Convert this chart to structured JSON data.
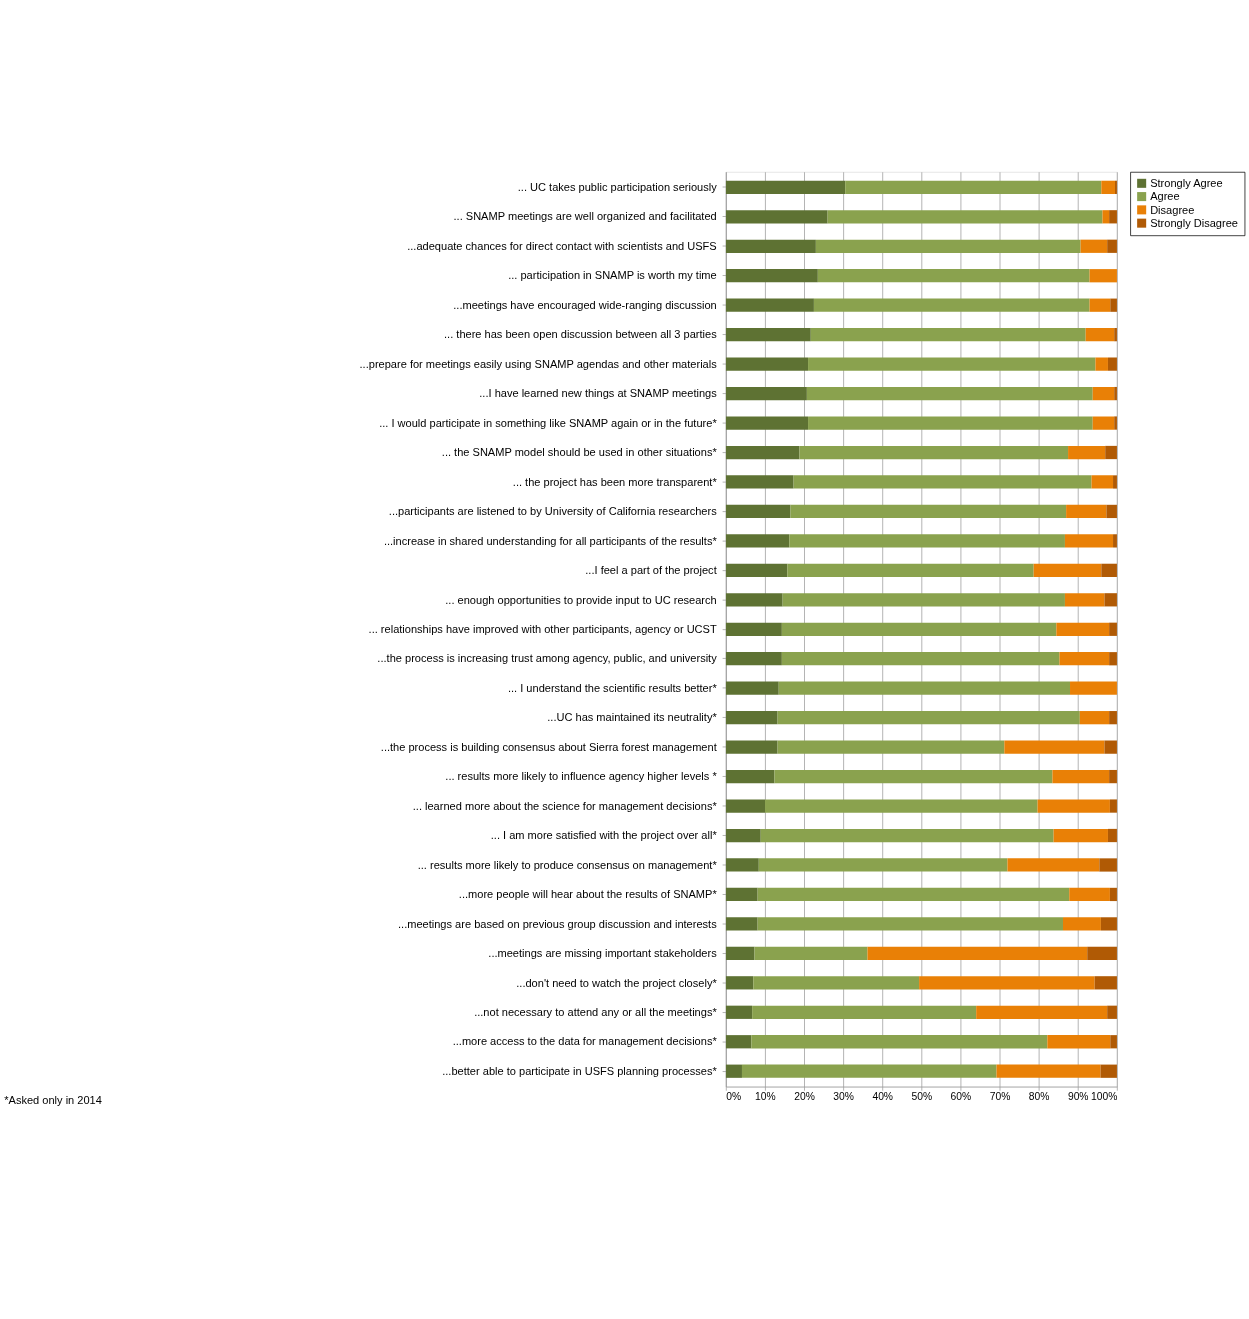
{
  "chart_data": {
    "type": "bar",
    "orientation": "horizontal",
    "stacked": true,
    "categories": [
      "... UC takes public participation seriously",
      "... SNAMP meetings are well organized and facilitated",
      "...adequate chances for direct contact with  scientists and USFS",
      "... participation in SNAMP is worth my time",
      "...meetings have encouraged wide-ranging discussion",
      "... there has been open discussion between all 3 parties",
      "...prepare for meetings easily using SNAMP agendas and other materials",
      "...I have learned new things at SNAMP meetings",
      "... I would participate in something like SNAMP again or in the future*",
      "... the SNAMP model should be used in other situations*",
      "... the project has been more transparent*",
      "...participants are listened to by University of California researchers",
      "...increase in shared understanding for all participants of the results*",
      "...I feel a part of the project",
      "... enough opportunities to provide input to UC research",
      "... relationships have improved with other participants, agency or UCST",
      "...the process is increasing trust among agency, public, and university",
      "... I understand the scientific results better*",
      "...UC has maintained its neutrality*",
      "...the process is building consensus about Sierra forest management",
      "... results  more likely to influence agency higher levels *",
      "... learned more about the science for management decisions*",
      "... I am more satisfied with the project over all*",
      "... results more likely to produce consensus on management*",
      "...more people will hear about the results of SNAMP*",
      "...meetings are  based on previous group discussion and interests",
      "...meetings are missing important stakeholders",
      "...don't need to watch the project closely*",
      "...not necessary to attend any or all the meetings*",
      "...more access to the data for management decisions*",
      "...better able to participate in USFS planning processes*"
    ],
    "series": [
      {
        "name": "Strongly Agree",
        "color": "#5e7233",
        "values": [
          30.5,
          26,
          23,
          23.5,
          22.5,
          21.7,
          21,
          20.7,
          21,
          18.8,
          17.3,
          16.5,
          16.2,
          15.7,
          14.5,
          14.3,
          14.3,
          13.5,
          13.2,
          13.2,
          12.4,
          10,
          8.9,
          8.4,
          8.1,
          8.1,
          7.3,
          7,
          6.7,
          6.5,
          4.1
        ]
      },
      {
        "name": "Agree",
        "color": "#8aa24e",
        "values": [
          65.5,
          70.3,
          67.7,
          69.5,
          70.5,
          70.3,
          73.5,
          73.1,
          72.8,
          68.7,
          76.2,
          70.5,
          70.5,
          63,
          72.2,
          70.2,
          71,
          74.5,
          77.3,
          58,
          71.1,
          69.7,
          74.9,
          63.6,
          79.7,
          78.1,
          28.9,
          42.4,
          57.3,
          75.7,
          65.1
        ]
      },
      {
        "name": "Disagree",
        "color": "#e98006",
        "values": [
          3.5,
          1.7,
          6.8,
          7,
          5.3,
          7.3,
          3.2,
          5.5,
          5.5,
          9.5,
          5.5,
          10.3,
          12.3,
          17.3,
          10.1,
          13.5,
          12.7,
          12,
          7.5,
          25.6,
          14.5,
          18.5,
          13.9,
          23.5,
          10.4,
          9.7,
          56.2,
          44.9,
          33.5,
          16.1,
          26.6
        ]
      },
      {
        "name": "Strongly Disagree",
        "color": "#b05a05",
        "values": [
          0.5,
          2,
          2.5,
          0,
          1.7,
          0.7,
          2.3,
          0.7,
          0.7,
          3,
          1,
          2.7,
          1,
          4,
          3.2,
          2,
          2,
          0,
          2,
          3.2,
          2,
          1.8,
          2.3,
          4.5,
          1.8,
          4.1,
          7.6,
          5.7,
          2.5,
          1.7,
          4.2
        ]
      }
    ],
    "xlim": [
      0,
      100
    ],
    "xticks": [
      {
        "value": 0,
        "label": "0%"
      },
      {
        "value": 10,
        "label": "10%"
      },
      {
        "value": 20,
        "label": "20%"
      },
      {
        "value": 30,
        "label": "30%"
      },
      {
        "value": 40,
        "label": "40%"
      },
      {
        "value": 50,
        "label": "50%"
      },
      {
        "value": 60,
        "label": "60%"
      },
      {
        "value": 70,
        "label": "70%"
      },
      {
        "value": 80,
        "label": "80%"
      },
      {
        "value": 90,
        "label": "90%"
      },
      {
        "value": 100,
        "label": "100%"
      }
    ],
    "grid": "x",
    "legend": "right",
    "annotations": [
      "*Asked only in 2014"
    ]
  }
}
